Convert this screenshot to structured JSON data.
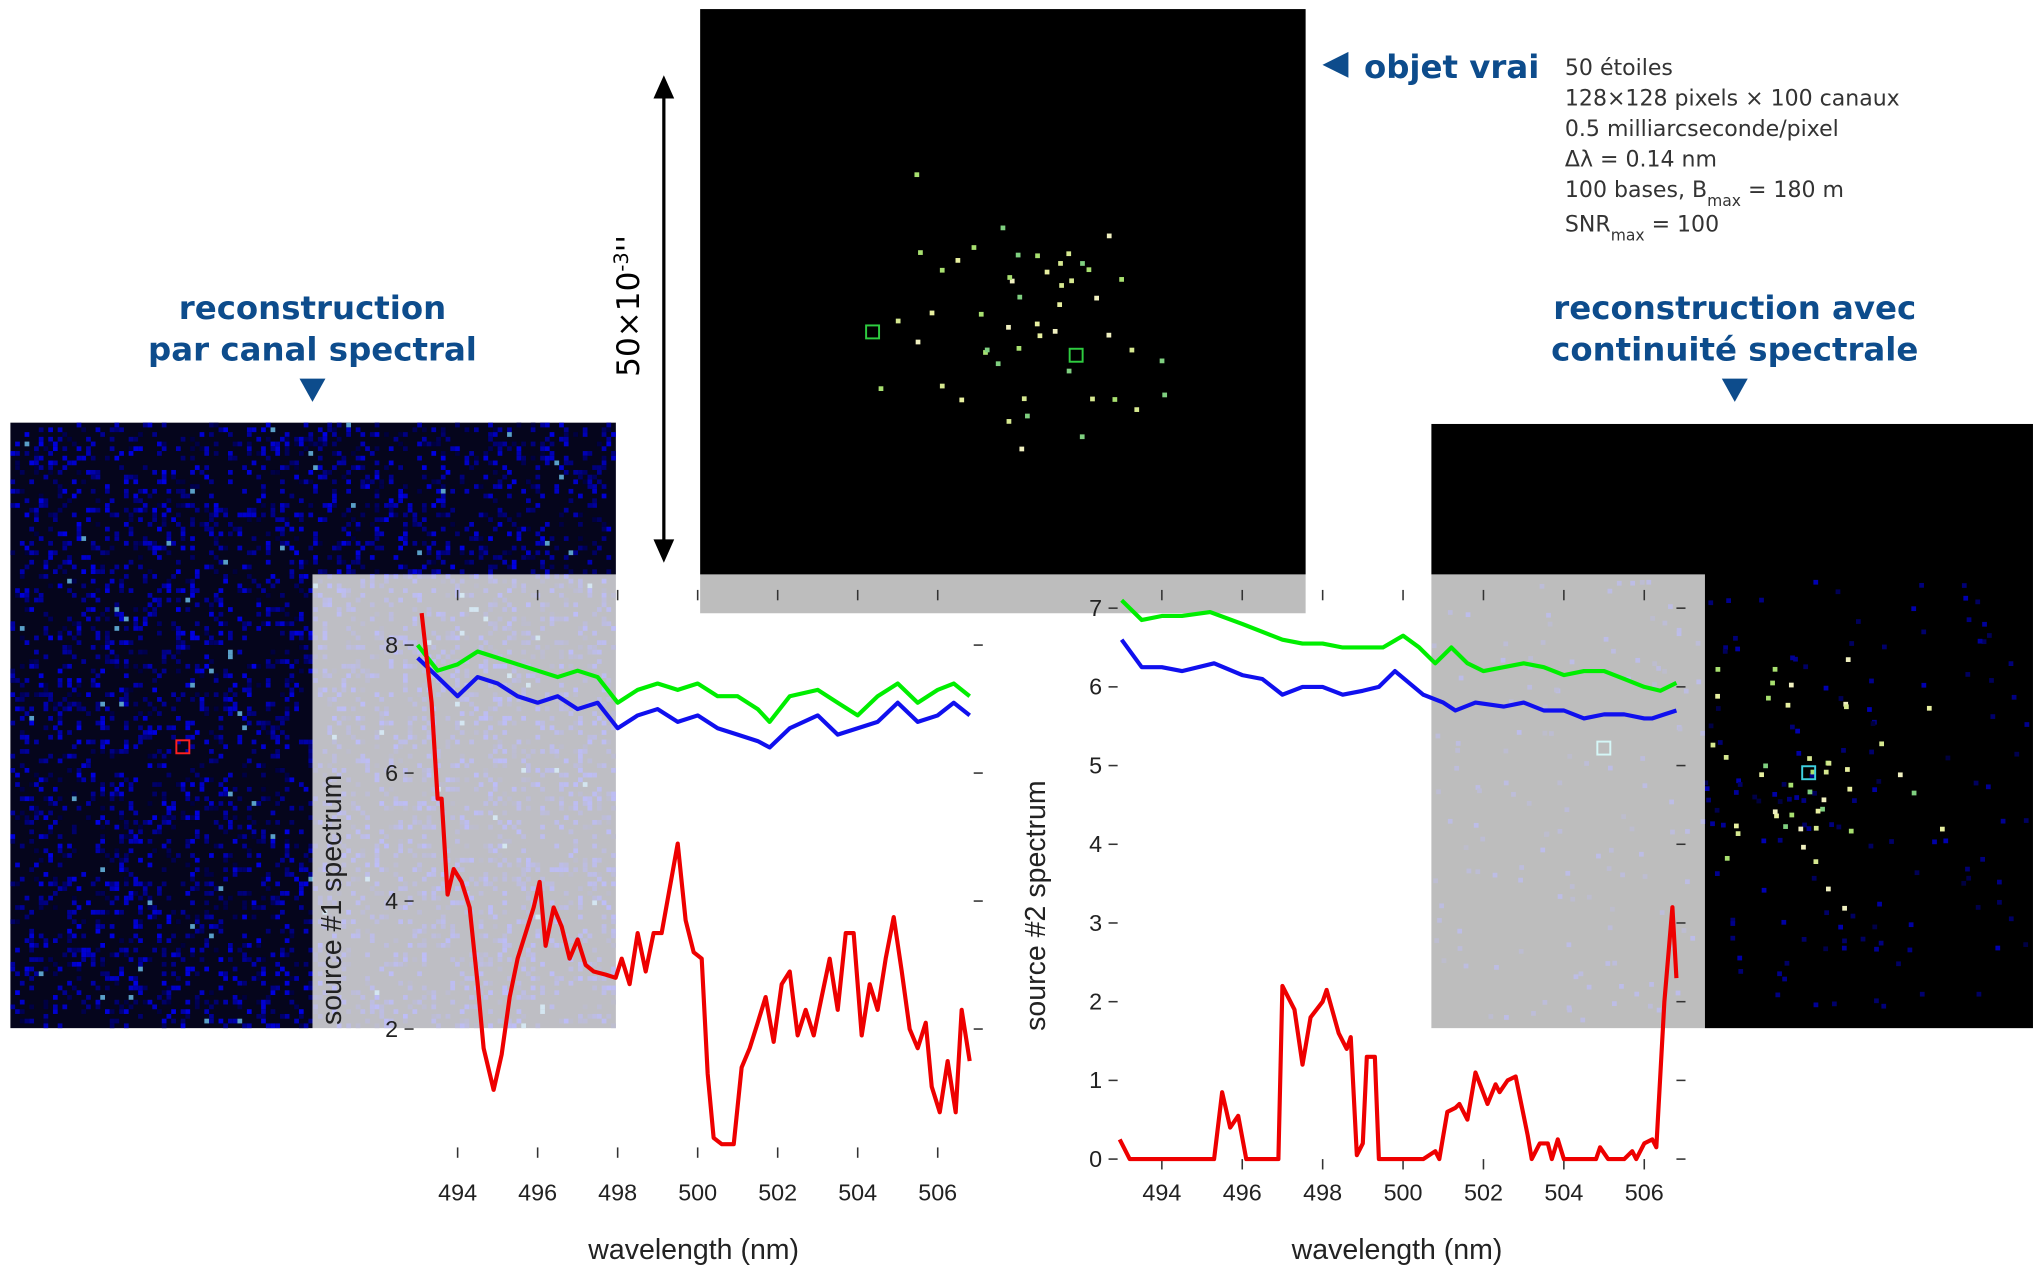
{
  "figure": {
    "left_title": [
      "reconstruction",
      "par canal spectral"
    ],
    "right_title": [
      "reconstruction avec",
      "continuité spectrale"
    ],
    "true_label": "objet vrai",
    "scale_label": [
      "50×10",
      "-3",
      "''"
    ],
    "params": [
      [
        "50 étoiles"
      ],
      [
        "128×128 pixels × 100 canaux"
      ],
      [
        "0.5 milliarcseconde/pixel"
      ],
      [
        "Δλ = 0.14 nm"
      ],
      [
        "100 bases, B",
        "max",
        " = 180 m"
      ],
      [
        "SNR",
        "max",
        " = 100"
      ]
    ]
  },
  "chart_data": [
    {
      "type": "line",
      "y_label": "source #1 spectrum",
      "x_label": "wavelength (nm)",
      "xlim": [
        492.9,
        506.9
      ],
      "ylim": [
        0.15,
        8.7
      ],
      "xticks": [
        494,
        496,
        498,
        500,
        502,
        504,
        506
      ],
      "yticks": [
        2,
        4,
        6,
        8
      ],
      "series": [
        {
          "color": "#00ee00",
          "x": [
            493,
            493.5,
            494,
            494.5,
            495,
            495.5,
            496,
            496.5,
            497,
            497.5,
            498,
            498.5,
            499,
            499.5,
            500,
            500.5,
            501,
            501.5,
            501.8,
            502.3,
            503,
            503.5,
            504,
            504.5,
            505,
            505.5,
            506,
            506.4,
            506.8
          ],
          "values": [
            8.0,
            7.6,
            7.7,
            7.9,
            7.8,
            7.7,
            7.6,
            7.5,
            7.6,
            7.5,
            7.1,
            7.3,
            7.4,
            7.3,
            7.4,
            7.2,
            7.2,
            7.0,
            6.8,
            7.2,
            7.3,
            7.1,
            6.9,
            7.2,
            7.4,
            7.1,
            7.3,
            7.4,
            7.2
          ]
        },
        {
          "color": "#1010ee",
          "x": [
            493,
            493.5,
            494,
            494.5,
            495,
            495.5,
            496,
            496.5,
            497,
            497.5,
            498,
            498.5,
            499,
            499.5,
            500,
            500.5,
            501,
            501.5,
            501.8,
            502.3,
            503,
            503.5,
            504,
            504.5,
            505,
            505.5,
            506,
            506.4,
            506.8
          ],
          "values": [
            7.8,
            7.5,
            7.2,
            7.5,
            7.4,
            7.2,
            7.1,
            7.2,
            7.0,
            7.1,
            6.7,
            6.9,
            7.0,
            6.8,
            6.9,
            6.7,
            6.6,
            6.5,
            6.4,
            6.7,
            6.9,
            6.6,
            6.7,
            6.8,
            7.1,
            6.8,
            6.9,
            7.1,
            6.9
          ]
        },
        {
          "color": "#ee0000",
          "x": [
            493.1,
            493.35,
            493.5,
            493.6,
            493.75,
            493.9,
            494.1,
            494.3,
            494.5,
            494.65,
            494.9,
            495.1,
            495.3,
            495.5,
            495.7,
            495.9,
            496.05,
            496.2,
            496.4,
            496.6,
            496.8,
            497.0,
            497.2,
            497.4,
            497.7,
            497.95,
            498.1,
            498.3,
            498.5,
            498.7,
            498.9,
            499.1,
            499.3,
            499.5,
            499.7,
            499.9,
            500.1,
            500.25,
            500.4,
            500.6,
            500.9,
            501.1,
            501.3,
            501.5,
            501.7,
            501.9,
            502.1,
            502.3,
            502.5,
            502.7,
            502.9,
            503.1,
            503.3,
            503.5,
            503.7,
            503.9,
            504.1,
            504.3,
            504.5,
            504.7,
            504.9,
            505.1,
            505.3,
            505.5,
            505.7,
            505.85,
            506.05,
            506.25,
            506.45,
            506.6,
            506.8
          ],
          "values": [
            8.5,
            7.1,
            5.6,
            5.6,
            4.1,
            4.5,
            4.3,
            3.9,
            2.7,
            1.7,
            1.05,
            1.6,
            2.5,
            3.1,
            3.5,
            3.9,
            4.3,
            3.3,
            3.9,
            3.6,
            3.1,
            3.4,
            3.0,
            2.9,
            2.85,
            2.8,
            3.1,
            2.7,
            3.5,
            2.9,
            3.5,
            3.5,
            4.2,
            4.9,
            3.7,
            3.2,
            3.1,
            1.3,
            0.3,
            0.2,
            0.2,
            1.4,
            1.7,
            2.1,
            2.5,
            1.8,
            2.7,
            2.9,
            1.9,
            2.3,
            1.9,
            2.5,
            3.1,
            2.3,
            3.5,
            3.5,
            1.9,
            2.7,
            2.3,
            3.1,
            3.75,
            2.9,
            2.0,
            1.7,
            2.1,
            1.1,
            0.7,
            1.5,
            0.7,
            2.3,
            1.5
          ]
        }
      ]
    },
    {
      "type": "line",
      "y_label": "source #2 spectrum",
      "x_label": "wavelength (nm)",
      "xlim": [
        492.9,
        506.8
      ],
      "ylim": [
        0,
        7.1
      ],
      "xticks": [
        494,
        496,
        498,
        500,
        502,
        504,
        506
      ],
      "yticks": [
        0,
        1,
        2,
        3,
        4,
        5,
        6,
        7
      ],
      "series": [
        {
          "color": "#00ee00",
          "x": [
            493,
            493.5,
            494,
            494.5,
            495.2,
            496,
            496.5,
            497,
            497.5,
            498,
            498.5,
            499,
            499.5,
            500,
            500.4,
            500.8,
            501.2,
            501.6,
            502,
            502.5,
            503,
            503.5,
            504,
            504.5,
            505,
            505.5,
            506,
            506.4,
            506.8
          ],
          "values": [
            7.1,
            6.85,
            6.9,
            6.9,
            6.95,
            6.8,
            6.7,
            6.6,
            6.55,
            6.55,
            6.5,
            6.5,
            6.5,
            6.65,
            6.5,
            6.3,
            6.5,
            6.3,
            6.2,
            6.25,
            6.3,
            6.25,
            6.15,
            6.2,
            6.2,
            6.1,
            6.0,
            5.95,
            6.05
          ]
        },
        {
          "color": "#1010ee",
          "x": [
            493,
            493.5,
            494,
            494.5,
            495.3,
            496,
            496.5,
            497,
            497.5,
            498,
            498.5,
            499,
            499.4,
            499.8,
            500.5,
            501,
            501.3,
            501.8,
            502.5,
            503,
            503.5,
            504,
            504.5,
            505,
            505.5,
            506,
            506.2,
            506.5,
            506.8
          ],
          "values": [
            6.6,
            6.25,
            6.25,
            6.2,
            6.3,
            6.15,
            6.1,
            5.9,
            6.0,
            6.0,
            5.9,
            5.95,
            6.0,
            6.2,
            5.9,
            5.8,
            5.7,
            5.8,
            5.75,
            5.8,
            5.7,
            5.7,
            5.6,
            5.65,
            5.65,
            5.6,
            5.6,
            5.65,
            5.7
          ]
        },
        {
          "color": "#ee0000",
          "x": [
            492.95,
            493.2,
            495.3,
            495.5,
            495.7,
            495.9,
            496.1,
            496.9,
            497.0,
            497.3,
            497.5,
            497.7,
            498.0,
            498.1,
            498.4,
            498.6,
            498.7,
            498.85,
            499.0,
            499.1,
            499.3,
            499.4,
            500.5,
            500.8,
            500.9,
            501.1,
            501.3,
            501.4,
            501.6,
            501.8,
            502.1,
            502.3,
            502.4,
            502.6,
            502.8,
            503.1,
            503.2,
            503.4,
            503.6,
            503.7,
            503.85,
            504.0,
            504.8,
            504.9,
            505.1,
            505.5,
            505.7,
            505.8,
            506.0,
            506.2,
            506.3,
            506.5,
            506.7,
            506.8
          ],
          "values": [
            0.25,
            0,
            0,
            0.85,
            0.4,
            0.55,
            0,
            0,
            2.2,
            1.9,
            1.2,
            1.8,
            2.0,
            2.15,
            1.6,
            1.4,
            1.55,
            0.05,
            0.2,
            1.3,
            1.3,
            0,
            0,
            0.1,
            0,
            0.6,
            0.65,
            0.7,
            0.5,
            1.1,
            0.7,
            0.95,
            0.85,
            1.0,
            1.05,
            0.3,
            0,
            0.2,
            0.2,
            0,
            0.25,
            0,
            0,
            0.15,
            0,
            0,
            0.1,
            0,
            0.2,
            0.25,
            0.15,
            2.0,
            3.2,
            2.3
          ]
        }
      ]
    }
  ]
}
